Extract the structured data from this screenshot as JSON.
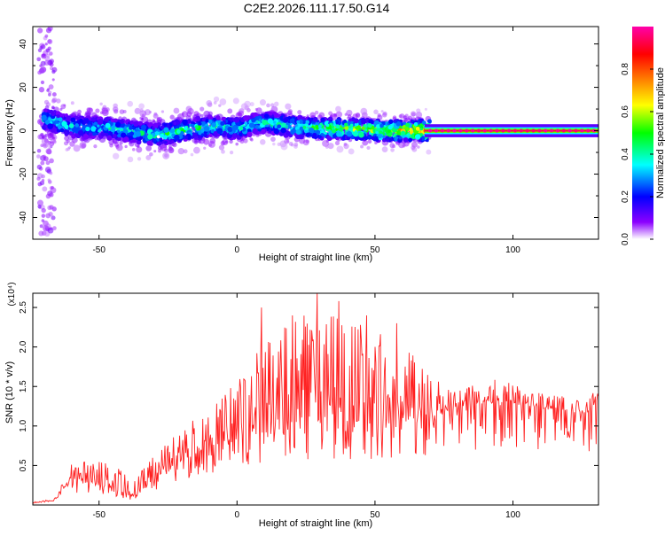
{
  "title": "C2E2.2026.111.17.50.G14",
  "chart_data": [
    {
      "type": "heatmap",
      "xlabel": "Height of straight line (km)",
      "ylabel": "Frequency (Hz)",
      "xlim": [
        -74,
        131
      ],
      "ylim": [
        -50,
        48
      ],
      "x_ticks": [
        -50,
        0,
        50,
        100
      ],
      "y_ticks": [
        -40,
        -20,
        0,
        20,
        40
      ],
      "colorbar": {
        "label": "Normalized spectral amplitude",
        "range": [
          0,
          1
        ],
        "ticks": [
          0.0,
          0.2,
          0.4,
          0.6,
          0.8
        ],
        "colormap": [
          "#ffffff",
          "#8c00ff",
          "#0000ff",
          "#00ffff",
          "#00ff00",
          "#ffff00",
          "#ff8000",
          "#ff0000",
          "#ff00aa"
        ]
      },
      "ridge": {
        "description_points": [
          {
            "x": -68,
            "freq": 5,
            "amp": 0.45
          },
          {
            "x": -60,
            "freq": 2,
            "amp": 0.4
          },
          {
            "x": -45,
            "freq": 1,
            "amp": 0.45
          },
          {
            "x": -30,
            "freq": -2,
            "amp": 0.5
          },
          {
            "x": -20,
            "freq": 0,
            "amp": 0.55
          },
          {
            "x": -10,
            "freq": 2,
            "amp": 0.5
          },
          {
            "x": 0,
            "freq": 1,
            "amp": 0.45
          },
          {
            "x": 10,
            "freq": 4,
            "amp": 0.45
          },
          {
            "x": 20,
            "freq": 2,
            "amp": 0.5
          },
          {
            "x": 30,
            "freq": 1,
            "amp": 0.6
          },
          {
            "x": 40,
            "freq": 1,
            "amp": 0.7
          },
          {
            "x": 50,
            "freq": 0,
            "amp": 0.7
          },
          {
            "x": 60,
            "freq": 0,
            "amp": 0.8
          },
          {
            "x": 70,
            "freq": 0,
            "amp": 0.9
          },
          {
            "x": 100,
            "freq": 0,
            "amp": 0.95
          },
          {
            "x": 131,
            "freq": 0,
            "amp": 0.95
          }
        ]
      }
    },
    {
      "type": "line",
      "xlabel": "Height of straight line (km)",
      "ylabel": "SNR (10 * v/v)",
      "y_multiplier": "(x10⁴)",
      "xlim": [
        -74,
        131
      ],
      "ylim": [
        0,
        2.68
      ],
      "x_ticks": [
        -50,
        0,
        50,
        100
      ],
      "y_ticks": [
        0.5,
        1.0,
        1.5,
        2.0,
        2.5
      ],
      "series": [
        {
          "color": "#ff2020",
          "envelope": [
            {
              "x": -74,
              "base": 0.02,
              "spike": 0.05
            },
            {
              "x": -66,
              "base": 0.05,
              "spike": 0.1
            },
            {
              "x": -62,
              "base": 0.2,
              "spike": 0.45
            },
            {
              "x": -56,
              "base": 0.3,
              "spike": 0.65
            },
            {
              "x": -50,
              "base": 0.25,
              "spike": 0.55
            },
            {
              "x": -44,
              "base": 0.2,
              "spike": 0.5
            },
            {
              "x": -38,
              "base": 0.1,
              "spike": 0.3
            },
            {
              "x": -32,
              "base": 0.25,
              "spike": 0.55
            },
            {
              "x": -26,
              "base": 0.45,
              "spike": 0.8
            },
            {
              "x": -20,
              "base": 0.55,
              "spike": 0.95
            },
            {
              "x": -10,
              "base": 0.7,
              "spike": 1.3
            },
            {
              "x": 0,
              "base": 0.8,
              "spike": 1.6
            },
            {
              "x": 10,
              "base": 0.9,
              "spike": 2.2
            },
            {
              "x": 20,
              "base": 1.0,
              "spike": 2.3
            },
            {
              "x": 30,
              "base": 1.05,
              "spike": 2.6
            },
            {
              "x": 40,
              "base": 1.05,
              "spike": 2.4
            },
            {
              "x": 50,
              "base": 1.0,
              "spike": 2.2
            },
            {
              "x": 60,
              "base": 1.05,
              "spike": 2.1
            },
            {
              "x": 67,
              "base": 1.1,
              "spike": 1.8
            },
            {
              "x": 75,
              "base": 1.15,
              "spike": 1.5
            },
            {
              "x": 85,
              "base": 1.25,
              "spike": 1.55
            },
            {
              "x": 95,
              "base": 1.3,
              "spike": 1.6
            },
            {
              "x": 105,
              "base": 1.25,
              "spike": 1.45
            },
            {
              "x": 115,
              "base": 1.2,
              "spike": 1.4
            },
            {
              "x": 125,
              "base": 1.15,
              "spike": 1.35
            },
            {
              "x": 131,
              "base": 1.2,
              "spike": 1.45
            }
          ],
          "peaks": [
            {
              "x": 9,
              "y": 2.5
            },
            {
              "x": 20,
              "y": 2.4
            },
            {
              "x": 29,
              "y": 2.68
            },
            {
              "x": 37,
              "y": 2.58
            },
            {
              "x": 47,
              "y": 2.4
            },
            {
              "x": 58,
              "y": 2.3
            }
          ]
        }
      ]
    }
  ]
}
